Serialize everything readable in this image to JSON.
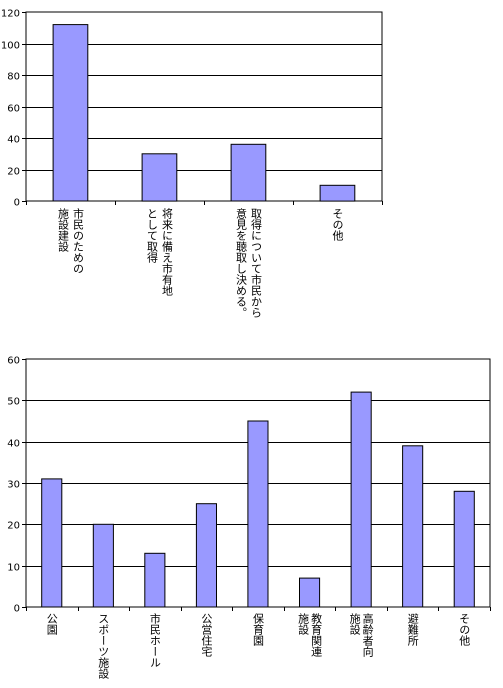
{
  "chart_data": [
    {
      "type": "bar",
      "categories": [
        [
          "市民のための",
          "施設建設"
        ],
        [
          "将来に備え市有地",
          "として取得"
        ],
        [
          "取得について市民から",
          "意見を聴取し決める。"
        ],
        [
          "その他"
        ]
      ],
      "values": [
        112,
        30,
        36,
        10
      ],
      "ylim": [
        0,
        120
      ],
      "yticks": [
        0,
        20,
        40,
        60,
        80,
        100,
        120
      ],
      "grid": true,
      "bar_color": "#9999ff",
      "title": "",
      "xlabel": "",
      "ylabel": ""
    },
    {
      "type": "bar",
      "categories": [
        [
          "公園"
        ],
        [
          "スポーツ施設"
        ],
        [
          "市民ホール"
        ],
        [
          "公営住宅"
        ],
        [
          "保育園"
        ],
        [
          "教育関連",
          "施設"
        ],
        [
          "高齢者向",
          "施設"
        ],
        [
          "避難所"
        ],
        [
          "その他"
        ]
      ],
      "values": [
        31,
        20,
        13,
        25,
        45,
        7,
        52,
        39,
        28
      ],
      "ylim": [
        0,
        60
      ],
      "yticks": [
        0,
        10,
        20,
        30,
        40,
        50,
        60
      ],
      "grid": true,
      "bar_color": "#9999ff",
      "title": "",
      "xlabel": "",
      "ylabel": ""
    }
  ]
}
